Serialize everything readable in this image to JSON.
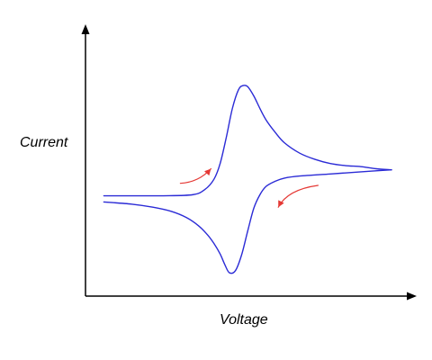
{
  "chart_data": {
    "type": "line",
    "xlabel": "Voltage",
    "ylabel": "Current",
    "xlim": [
      0,
      10
    ],
    "ylim": [
      -1,
      1
    ],
    "ticks_shown": false,
    "grid": false,
    "legend": "none",
    "series": [
      {
        "segment": "forward",
        "color": "#2b2bd6",
        "x": [
          0.6,
          1.5,
          2.5,
          3.5,
          3.9,
          4.2,
          4.4,
          4.6,
          4.8,
          5.0,
          5.15,
          5.3,
          5.5,
          5.7,
          5.9,
          6.2,
          6.5,
          7.0,
          7.5,
          8.0,
          8.5,
          9.0,
          9.5,
          10.0
        ],
        "y": [
          -0.26,
          -0.26,
          -0.26,
          -0.25,
          -0.2,
          -0.1,
          0.05,
          0.3,
          0.58,
          0.76,
          0.8,
          0.79,
          0.7,
          0.58,
          0.47,
          0.35,
          0.25,
          0.15,
          0.09,
          0.05,
          0.03,
          0.02,
          0.0,
          -0.01
        ]
      },
      {
        "segment": "reverse",
        "color": "#2b2bd6",
        "x": [
          10.0,
          9.0,
          8.0,
          7.0,
          6.5,
          6.2,
          5.9,
          5.7,
          5.5,
          5.3,
          5.1,
          4.9,
          4.7,
          4.55,
          4.4,
          4.2,
          4.0,
          3.7,
          3.3,
          2.8,
          2.2,
          1.5,
          0.6
        ],
        "y": [
          -0.01,
          -0.03,
          -0.05,
          -0.07,
          -0.09,
          -0.12,
          -0.17,
          -0.25,
          -0.38,
          -0.6,
          -0.83,
          -0.98,
          -1.0,
          -0.92,
          -0.82,
          -0.72,
          -0.64,
          -0.55,
          -0.47,
          -0.41,
          -0.37,
          -0.34,
          -0.32
        ]
      }
    ],
    "annotations": [
      {
        "type": "arrow",
        "color": "#e53935",
        "from": [
          3.1,
          -0.14
        ],
        "via": [
          3.7,
          -0.13
        ],
        "to": [
          4.1,
          0.0
        ]
      },
      {
        "type": "arrow",
        "color": "#e53935",
        "from": [
          7.6,
          -0.16
        ],
        "via": [
          6.6,
          -0.2
        ],
        "to": [
          6.3,
          -0.37
        ]
      }
    ]
  }
}
